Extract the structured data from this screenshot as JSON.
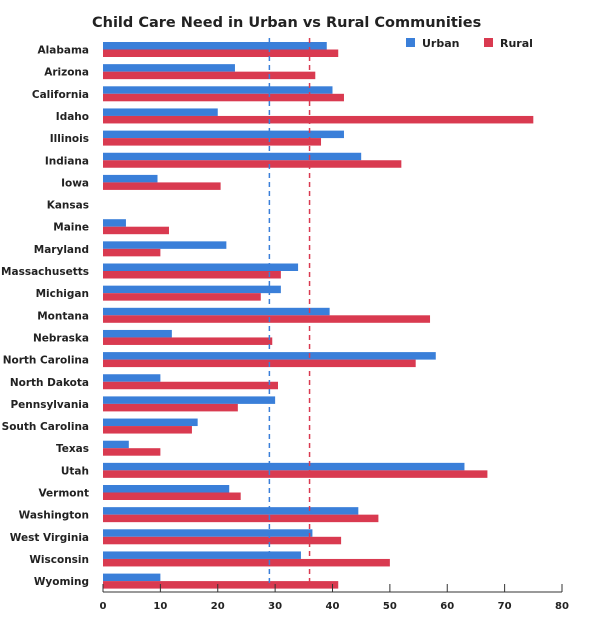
{
  "chart_data": {
    "type": "bar",
    "orientation": "horizontal",
    "title": "Child Care Need in Urban vs Rural Communities",
    "xlim": [
      0,
      80
    ],
    "xticks": [
      0,
      10,
      20,
      30,
      40,
      50,
      60,
      70,
      80
    ],
    "legend_position": "top-right",
    "categories": [
      "Alabama",
      "Arizona",
      "California",
      "Idaho",
      "Illinois",
      "Indiana",
      "Iowa",
      "Kansas",
      "Maine",
      "Maryland",
      "Massachusetts",
      "Michigan",
      "Montana",
      "Nebraska",
      "North Carolina",
      "North Dakota",
      "Pennsylvania",
      "South Carolina",
      "Texas",
      "Utah",
      "Vermont",
      "Washington",
      "West Virginia",
      "Wisconsin",
      "Wyoming"
    ],
    "series": [
      {
        "name": "Urban",
        "color": "#3a7fd9",
        "values": [
          39,
          23,
          40,
          20,
          42,
          45,
          9.5,
          0,
          4,
          21.5,
          34,
          31,
          39.5,
          12,
          58,
          10,
          30,
          16.5,
          4.5,
          63,
          22,
          44.5,
          36.5,
          34.5,
          10
        ]
      },
      {
        "name": "Rural",
        "color": "#d93a50",
        "values": [
          41,
          37,
          42,
          75,
          38,
          52,
          20.5,
          0,
          11.5,
          10,
          31,
          27.5,
          57,
          29.5,
          54.5,
          30.5,
          23.5,
          15.5,
          10,
          67,
          24,
          48,
          41.5,
          50,
          41
        ]
      }
    ],
    "reference_lines": [
      {
        "series": "Urban",
        "value": 29,
        "style": "dashed",
        "color": "#3a7fd9"
      },
      {
        "series": "Rural",
        "value": 36,
        "style": "dashed",
        "color": "#d93a50"
      }
    ]
  }
}
